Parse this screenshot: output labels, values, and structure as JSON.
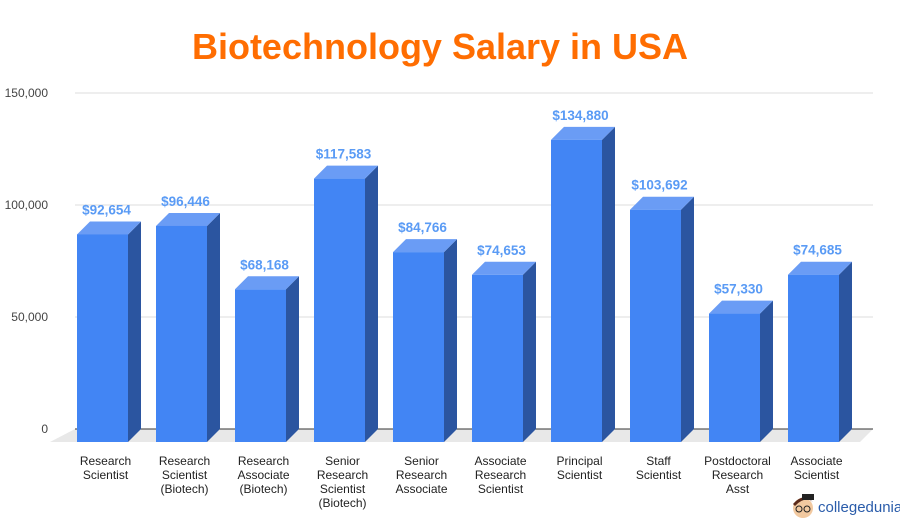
{
  "chart_data": {
    "type": "bar",
    "title": "Biotechnology Salary in USA",
    "categories": [
      [
        "Research",
        "Scientist"
      ],
      [
        "Research",
        "Scientist",
        "(Biotech)"
      ],
      [
        "Research",
        "Associate",
        "(Biotech)"
      ],
      [
        "Senior",
        "Research",
        "Scientist",
        "(Biotech)"
      ],
      [
        "Senior",
        "Research",
        "Associate"
      ],
      [
        "Associate",
        "Research",
        "Scientist"
      ],
      [
        "Principal",
        "Scientist"
      ],
      [
        "Staff",
        "Scientist"
      ],
      [
        "Postdoctoral",
        "Research",
        "Asst"
      ],
      [
        "Associate",
        "Scientist"
      ]
    ],
    "values": [
      92654,
      96446,
      68168,
      117583,
      84766,
      74653,
      134880,
      103692,
      57330,
      74685
    ],
    "data_labels": [
      "$92,654",
      "$96,446",
      "$68,168",
      "$117,583",
      "$84,766",
      "$74,653",
      "$134,880",
      "$103,692",
      "$57,330",
      "$74,685"
    ],
    "ylim": [
      0,
      150000
    ],
    "yticks": [
      0,
      50000,
      100000,
      150000
    ],
    "ytick_labels": [
      "0",
      "50,000",
      "100,000",
      "150,000"
    ],
    "grid": true,
    "style": "3d",
    "colors": {
      "front": "#4285f4",
      "side": "#2b55a0",
      "top": "#6a9cf5",
      "title": "#ff6d01",
      "label": "#5a9bf5"
    }
  },
  "watermark": "collegedunia"
}
